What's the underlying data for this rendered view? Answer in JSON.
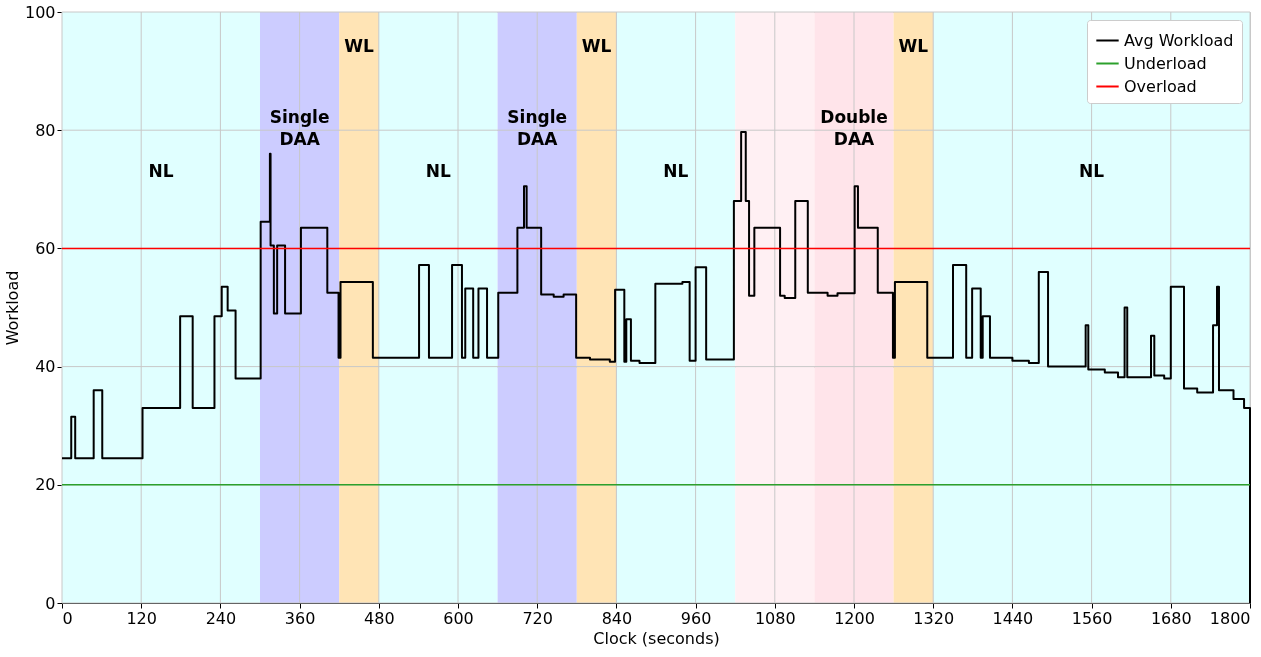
{
  "chart_data": {
    "type": "step",
    "xlabel": "Clock (seconds)",
    "ylabel": "Workload",
    "xlim": [
      0,
      1800
    ],
    "xticks": [
      0,
      120,
      240,
      360,
      480,
      600,
      720,
      840,
      960,
      1080,
      1200,
      1320,
      1440,
      1560,
      1680,
      1800
    ],
    "ylim": [
      0,
      100
    ],
    "yticks": [
      0,
      20,
      40,
      60,
      80,
      100
    ],
    "grid": true,
    "legend": "top right",
    "line_style": "solid",
    "series": [
      {
        "name": "Avg Workload",
        "color": "#000000",
        "x": [
          0,
          14,
          20,
          48,
          61,
          122,
          179,
          198,
          231,
          242,
          251,
          263,
          301,
          315,
          316,
          321,
          326,
          338,
          362,
          402,
          419,
          422,
          471,
          541,
          556,
          591,
          606,
          611,
          623,
          631,
          644,
          661,
          690,
          700,
          704,
          726,
          745,
          760,
          779,
          800,
          830,
          838,
          852,
          855,
          862,
          875,
          899,
          940,
          951,
          960,
          976,
          1018,
          1029,
          1036,
          1041,
          1049,
          1088,
          1095,
          1111,
          1130,
          1160,
          1175,
          1201,
          1206,
          1236,
          1259,
          1262,
          1311,
          1350,
          1370,
          1379,
          1392,
          1395,
          1406,
          1440,
          1465,
          1480,
          1494,
          1551,
          1555,
          1580,
          1600,
          1610,
          1614,
          1650,
          1655,
          1670,
          1680,
          1700,
          1720,
          1744,
          1750,
          1753,
          1775,
          1791,
          1800
        ],
        "values": [
          24.5,
          31.5,
          24.5,
          36,
          24.5,
          33,
          48.5,
          33,
          48.5,
          53.5,
          49.5,
          38,
          64.5,
          76,
          60.5,
          49,
          60.5,
          49,
          63.5,
          52.5,
          41.5,
          54.3,
          41.5,
          57.2,
          41.5,
          57.2,
          41.5,
          53.2,
          41.5,
          53.2,
          41.5,
          52.5,
          63.5,
          70.5,
          63.5,
          52.2,
          51.8,
          52.2,
          41.5,
          41.2,
          40.8,
          53,
          40.8,
          48,
          41,
          40.6,
          54,
          54.3,
          41,
          56.8,
          41.2,
          68,
          79.7,
          68,
          52,
          63.5,
          52,
          51.6,
          68,
          52.5,
          52,
          52.4,
          70.5,
          63.5,
          52.5,
          41.5,
          54.3,
          41.5,
          57.2,
          41.5,
          53.2,
          41.5,
          48.5,
          41.5,
          41,
          40.6,
          56,
          40,
          47,
          39.5,
          39,
          38.2,
          50,
          38.2,
          45.2,
          38.5,
          38,
          53.5,
          36.3,
          35.6,
          47,
          53.5,
          36,
          34.5,
          33,
          0
        ]
      }
    ],
    "ref_lines": [
      {
        "axis": "y",
        "value": 20,
        "label": "Underload",
        "color": "#2ca02c"
      },
      {
        "axis": "y",
        "value": 60,
        "label": "Overload",
        "color": "#ff0000"
      }
    ],
    "bands": [
      {
        "axis": "x",
        "from": 0,
        "to": 300,
        "color": "#e0ffff",
        "label": "NL"
      },
      {
        "axis": "x",
        "from": 300,
        "to": 420,
        "color": "#ccccff",
        "label": "Single\nDAA"
      },
      {
        "axis": "x",
        "from": 420,
        "to": 480,
        "color": "#ffe4b5",
        "label": "WL"
      },
      {
        "axis": "x",
        "from": 480,
        "to": 660,
        "color": "#e0ffff",
        "label": "NL"
      },
      {
        "axis": "x",
        "from": 660,
        "to": 780,
        "color": "#ccccff",
        "label": "Single\nDAA"
      },
      {
        "axis": "x",
        "from": 780,
        "to": 840,
        "color": "#ffe4b5",
        "label": "WL"
      },
      {
        "axis": "x",
        "from": 840,
        "to": 1020,
        "color": "#e0ffff",
        "label": "NL"
      },
      {
        "axis": "x",
        "from": 1020,
        "to": 1140,
        "color": "#fff0f3"
      },
      {
        "axis": "x",
        "from": 1140,
        "to": 1260,
        "color": "#ffe4ea",
        "label": "Double\nDAA"
      },
      {
        "axis": "x",
        "from": 1260,
        "to": 1320,
        "color": "#ffe4b5",
        "label": "WL"
      },
      {
        "axis": "x",
        "from": 1320,
        "to": 1800,
        "color": "#e0ffff",
        "label": "NL"
      }
    ]
  }
}
